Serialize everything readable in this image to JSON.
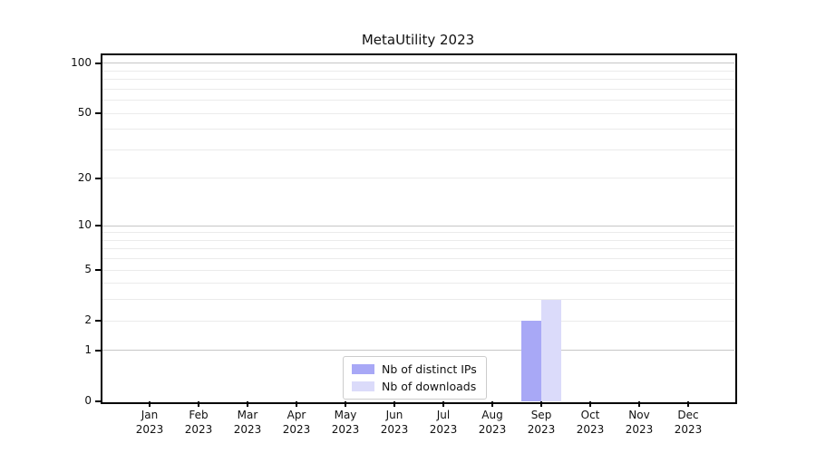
{
  "chart_data": {
    "type": "bar",
    "title": "MetaUtility 2023",
    "categories": [
      "Jan",
      "Feb",
      "Mar",
      "Apr",
      "May",
      "Jun",
      "Jul",
      "Aug",
      "Sep",
      "Oct",
      "Nov",
      "Dec"
    ],
    "category_year": "2023",
    "series": [
      {
        "name": "Nb of distinct IPs",
        "color": "#a8a8f6",
        "values": [
          0,
          0,
          0,
          0,
          0,
          0,
          0,
          0,
          2,
          0,
          0,
          0
        ]
      },
      {
        "name": "Nb of downloads",
        "color": "#dbdbfa",
        "values": [
          0,
          0,
          0,
          0,
          0,
          0,
          0,
          0,
          3,
          0,
          0,
          0
        ]
      }
    ],
    "y_axis": {
      "scale": "log1p",
      "ticks": [
        0,
        1,
        2,
        5,
        10,
        20,
        50,
        100
      ],
      "major_gridlines": [
        1,
        10,
        100
      ],
      "minor_gridlines": [
        2,
        3,
        4,
        5,
        6,
        7,
        8,
        9,
        20,
        30,
        40,
        50,
        60,
        70,
        80,
        90
      ],
      "ylim": [
        0,
        113
      ]
    },
    "legend_position": "lower center",
    "grid": "horizontal only",
    "colors": {
      "grid_major": "#c6c6c6",
      "grid_minor": "#ebebeb",
      "spine": "#000000",
      "background": "#ffffff"
    }
  }
}
